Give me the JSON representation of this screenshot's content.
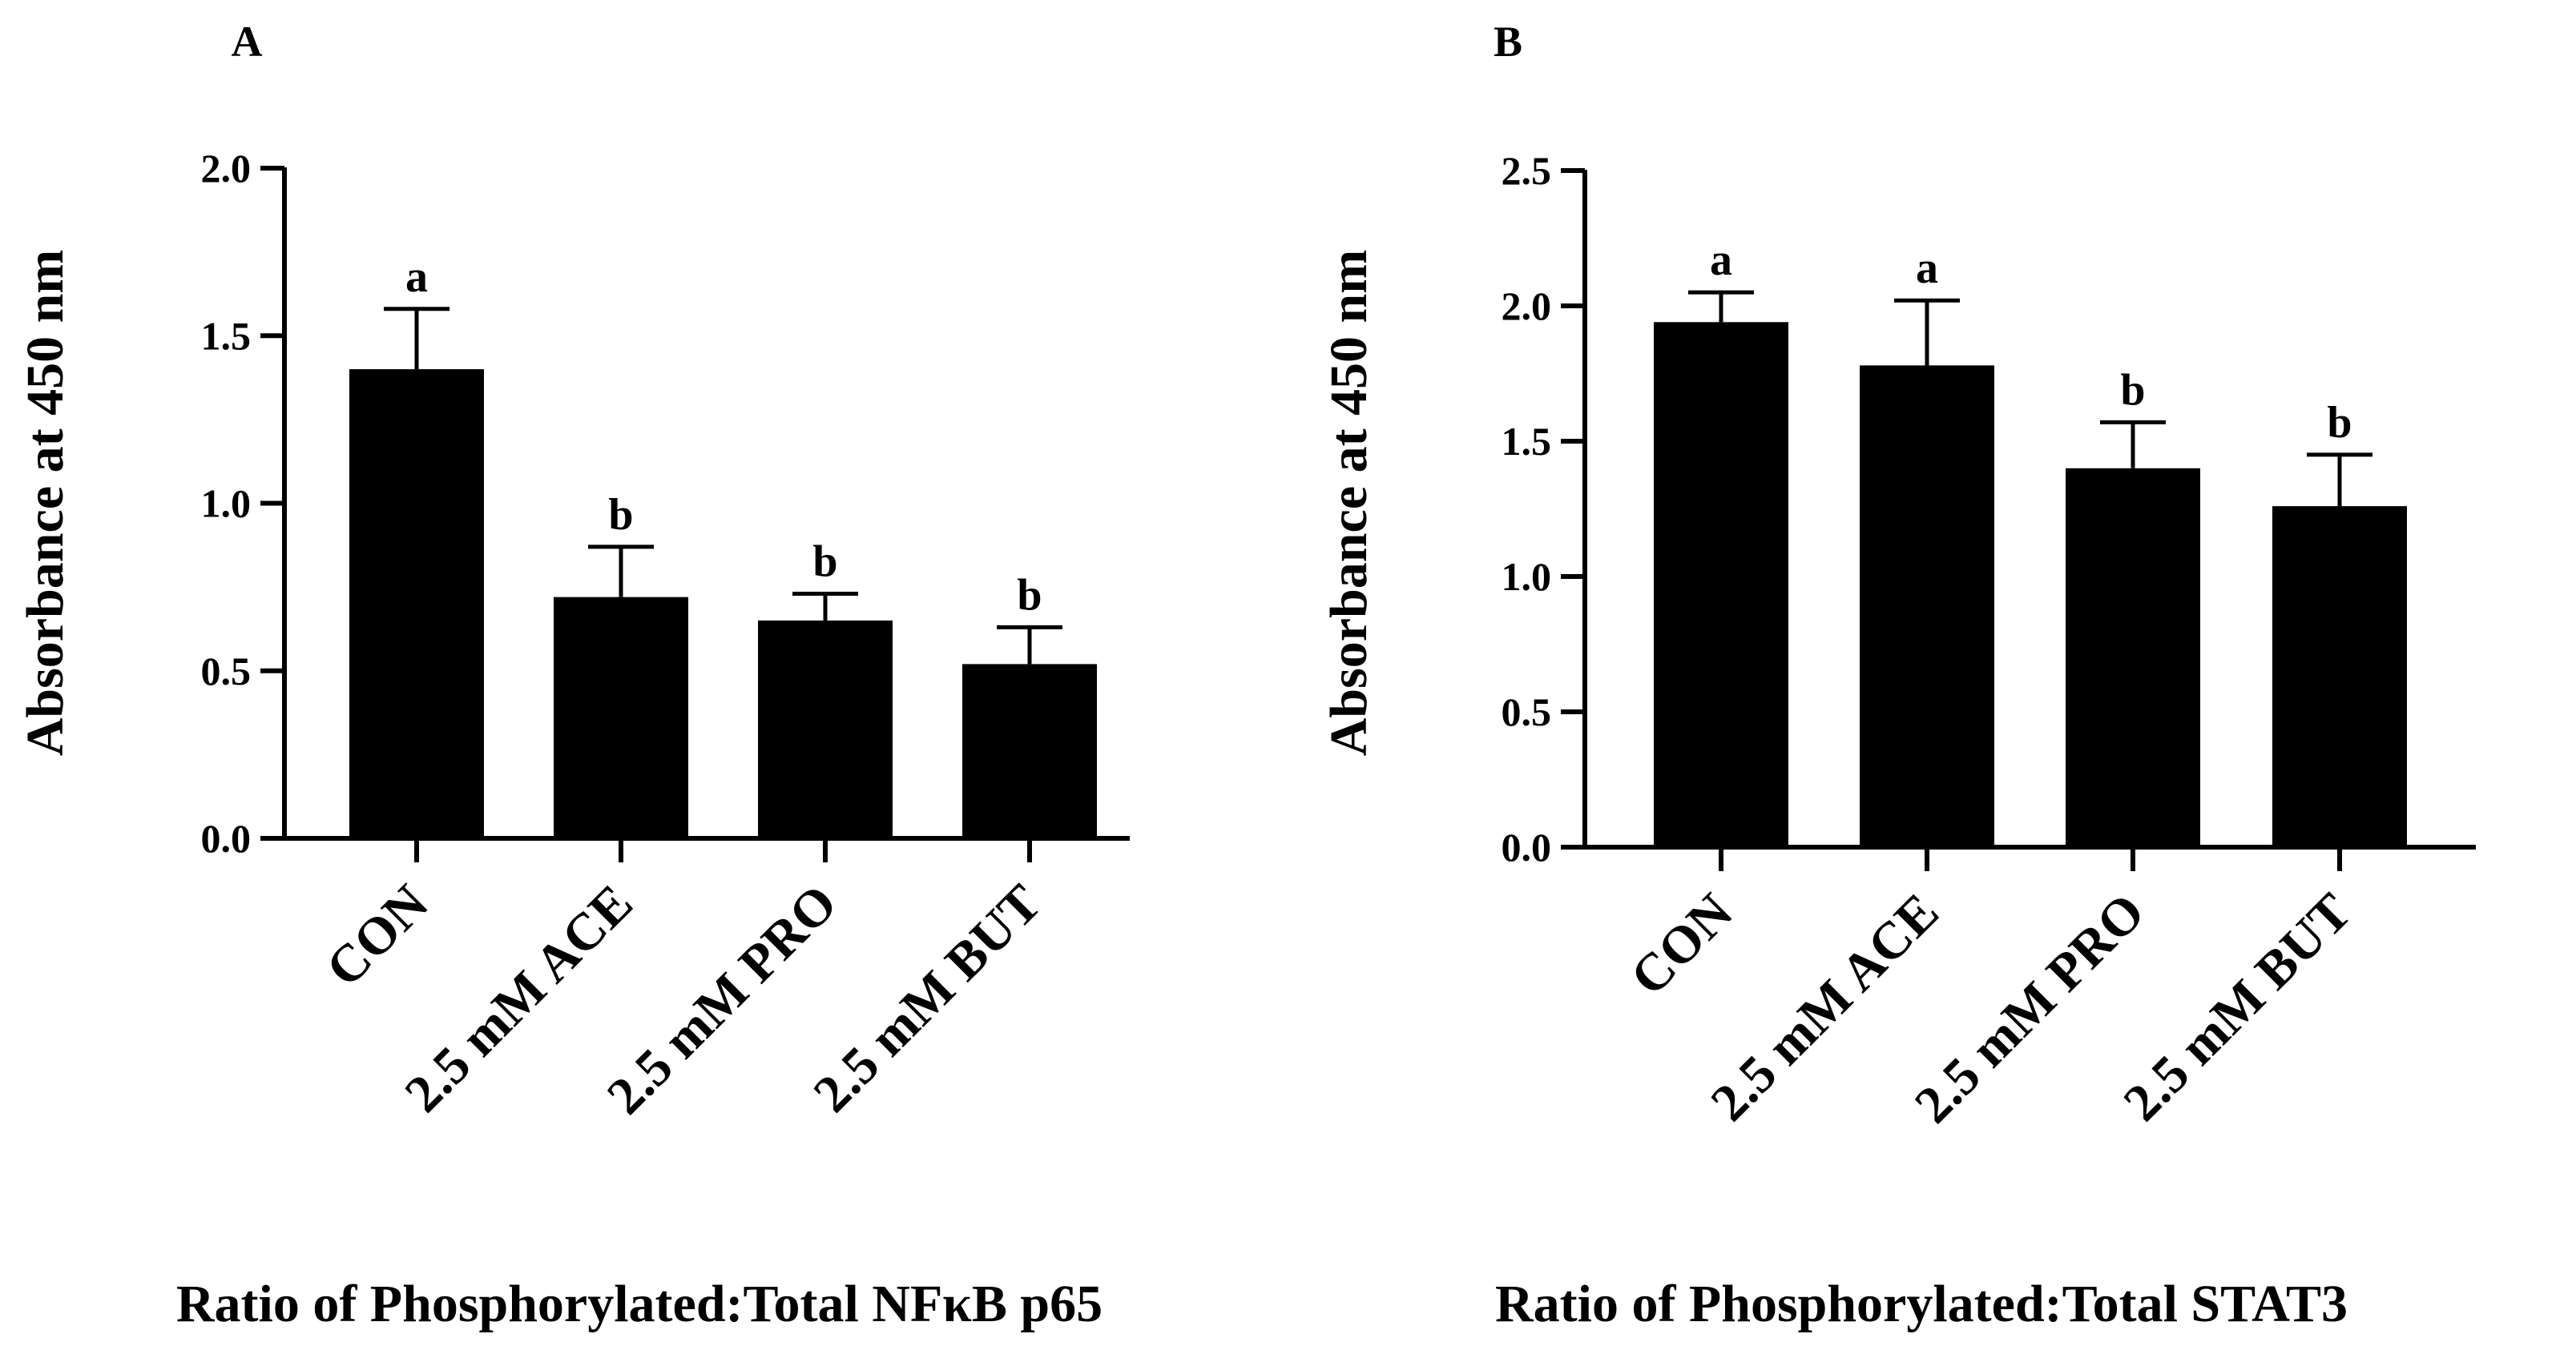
{
  "figure": {
    "background": "#ffffff",
    "bar_color": "#000000"
  },
  "chart_data": [
    {
      "type": "bar",
      "panel_label": "A",
      "title": "Ratio of Phosphorylated:Total NFκB p65",
      "xlabel": "",
      "ylabel": "Absorbance at 450 nm",
      "categories": [
        "CON",
        "2.5 mM ACE",
        "2.5 mM PRO",
        "2.5 mM BUT"
      ],
      "values": [
        1.4,
        0.72,
        0.65,
        0.52
      ],
      "error_upper": [
        0.18,
        0.15,
        0.08,
        0.11
      ],
      "significance": [
        "a",
        "b",
        "b",
        "b"
      ],
      "ylim": [
        0,
        2.0
      ],
      "yticks": [
        "0.0",
        "0.5",
        "1.0",
        "1.5",
        "2.0"
      ],
      "ytick_values": [
        0,
        0.5,
        1.0,
        1.5,
        2.0
      ],
      "grid": false,
      "legend": "none"
    },
    {
      "type": "bar",
      "panel_label": "B",
      "title": "Ratio of Phosphorylated:Total STAT3",
      "xlabel": "",
      "ylabel": "Absorbance at 450 nm",
      "categories": [
        "CON",
        "2.5 mM ACE",
        "2.5 mM PRO",
        "2.5 mM BUT"
      ],
      "values": [
        1.94,
        1.78,
        1.4,
        1.26
      ],
      "error_upper": [
        0.11,
        0.24,
        0.17,
        0.19
      ],
      "significance": [
        "a",
        "a",
        "b",
        "b"
      ],
      "ylim": [
        0,
        2.5
      ],
      "yticks": [
        "0.0",
        "0.5",
        "1.0",
        "1.5",
        "2.0",
        "2.5"
      ],
      "ytick_values": [
        0,
        0.5,
        1.0,
        1.5,
        2.0,
        2.5
      ],
      "grid": false,
      "legend": "none"
    }
  ]
}
